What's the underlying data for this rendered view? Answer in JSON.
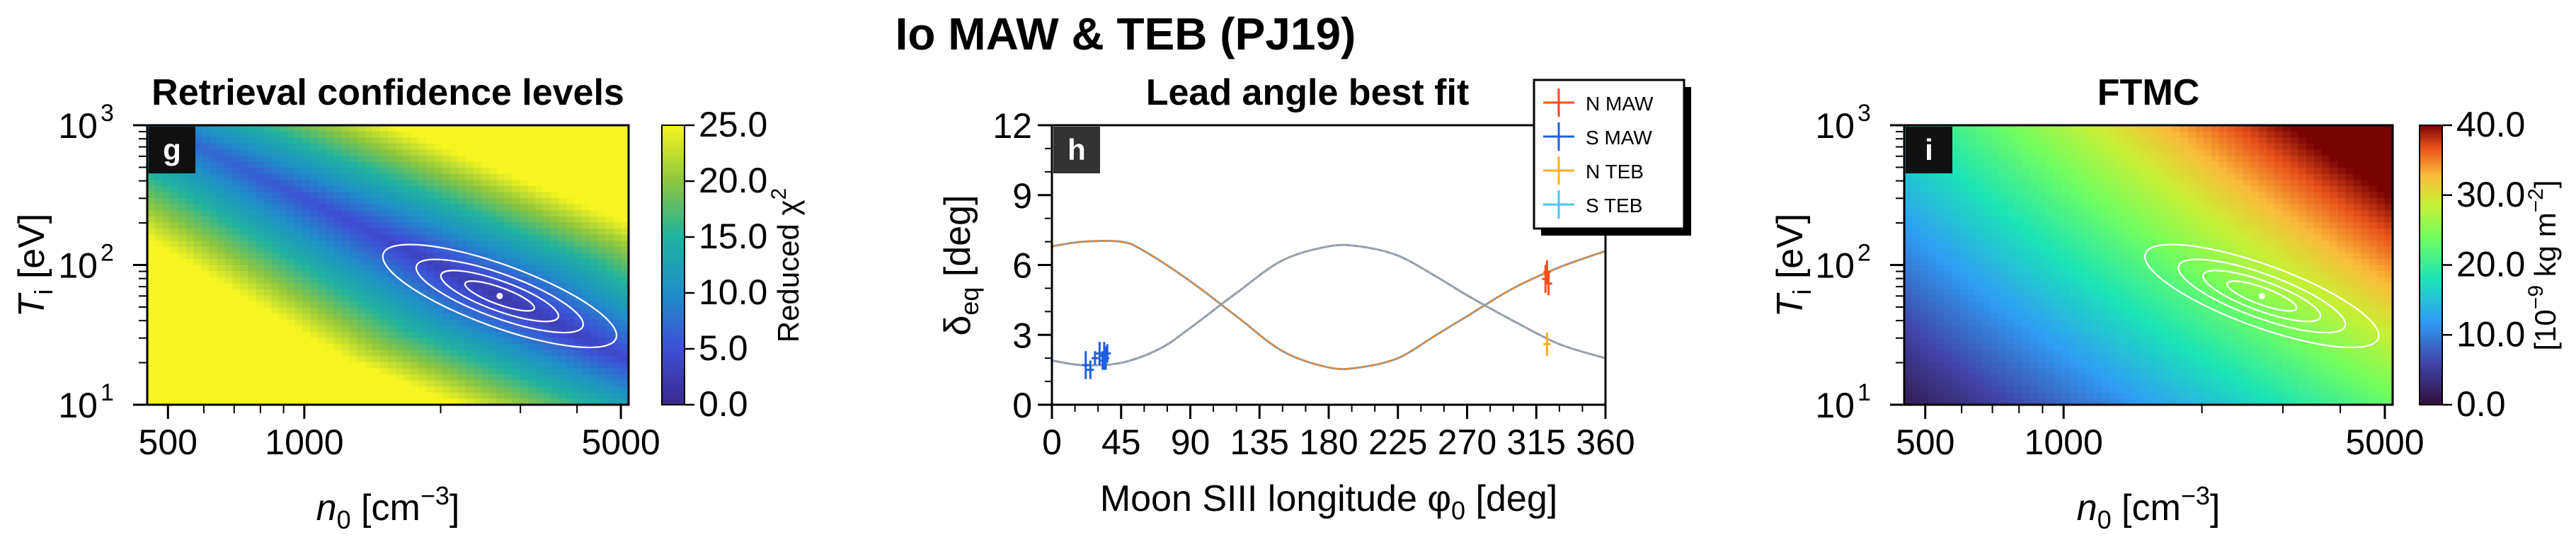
{
  "suptitle": "Io MAW & TEB (PJ19)",
  "colors": {
    "n_maw": "#ff4d1a",
    "s_maw": "#1f5fe0",
    "n_teb": "#ffb020",
    "s_teb": "#4fc3f7"
  },
  "chart_data": [
    {
      "type": "heatmap",
      "panel": "g",
      "title": "Retrieval confidence levels",
      "xlabel": "n",
      "xlabel_sub": "0",
      "xlabel_unit": " [cm",
      "xlabel_sup": "−3",
      "xlabel_end": "]",
      "ylabel": "T",
      "ylabel_sub": "i",
      "ylabel_unit": " [eV]",
      "xscale": "log",
      "yscale": "log",
      "xlim": [
        450,
        5200
      ],
      "ylim": [
        10,
        1000
      ],
      "xticks": [
        500,
        1000,
        5000
      ],
      "xtick_labels": [
        "500",
        "1000",
        "5000"
      ],
      "yticks": [
        10,
        100,
        1000
      ],
      "ytick_labels": [
        "10",
        "10",
        "10"
      ],
      "ytick_sups": [
        "1",
        "2",
        "3"
      ],
      "colorbar_label": "Reduced χ",
      "colorbar_label_sup": "2",
      "colorbar_ticks": [
        "0.0",
        "5.0",
        "10.0",
        "15.0",
        "20.0",
        "25.0"
      ],
      "clim": [
        0,
        25
      ],
      "colormap": "viridis-like (purple-blue-green-yellow)",
      "contours": "white nested ellipses",
      "best_fit": {
        "n0": 2700,
        "Ti": 60
      }
    },
    {
      "type": "line",
      "panel": "h",
      "title": "Lead angle best fit",
      "xlabel": "Moon SIII longitude φ",
      "xlabel_sub": "0",
      "xlabel_end": " [deg]",
      "ylabel": "δ",
      "ylabel_sub": "eq",
      "ylabel_end": " [deg]",
      "xlim": [
        0,
        360
      ],
      "ylim": [
        0,
        12
      ],
      "xticks": [
        0,
        45,
        90,
        135,
        180,
        225,
        270,
        315,
        360
      ],
      "xtick_labels": [
        "0",
        "45",
        "90",
        "135",
        "180",
        "225",
        "270",
        "315",
        "360"
      ],
      "yticks": [
        0,
        3,
        6,
        9,
        12
      ],
      "ytick_labels": [
        "0",
        "3",
        "6",
        "9",
        "12"
      ],
      "legend": [
        "N MAW",
        "S MAW",
        "N TEB",
        "S TEB"
      ],
      "legend_position": "top-right",
      "model_curves": [
        {
          "name": "north",
          "x": [
            0,
            20,
            45,
            60,
            90,
            120,
            150,
            180,
            200,
            225,
            250,
            270,
            300,
            330,
            360
          ],
          "y": [
            6.8,
            7.0,
            7.0,
            6.6,
            5.3,
            3.8,
            2.3,
            1.6,
            1.6,
            2.0,
            3.0,
            3.8,
            5.0,
            5.9,
            6.6
          ]
        },
        {
          "name": "south",
          "x": [
            0,
            20,
            45,
            70,
            90,
            120,
            150,
            180,
            200,
            225,
            250,
            270,
            300,
            330,
            360
          ],
          "y": [
            1.9,
            1.7,
            1.8,
            2.4,
            3.3,
            4.8,
            6.2,
            6.8,
            6.8,
            6.4,
            5.5,
            4.7,
            3.6,
            2.6,
            2.0
          ]
        }
      ],
      "observations": [
        {
          "name": "N MAW",
          "x": [
            321,
            322,
            323
          ],
          "y": [
            5.4,
            5.7,
            5.2
          ],
          "yerr": [
            0.6,
            0.5,
            0.5
          ]
        },
        {
          "name": "S MAW",
          "x": [
            22,
            25,
            28,
            31,
            33,
            34,
            35,
            36
          ],
          "y": [
            1.7,
            1.5,
            2.0,
            2.2,
            1.9,
            2.1,
            2.0,
            2.2
          ],
          "yerr": [
            0.6,
            0.4,
            0.3,
            0.5,
            0.4,
            0.6,
            0.5,
            0.4
          ]
        },
        {
          "name": "N TEB",
          "x": [
            322
          ],
          "y": [
            2.6
          ],
          "yerr": [
            0.5
          ]
        },
        {
          "name": "S TEB",
          "x": [],
          "y": [],
          "yerr": []
        }
      ]
    },
    {
      "type": "heatmap",
      "panel": "i",
      "title": "FTMC",
      "xlabel": "n",
      "xlabel_sub": "0",
      "xlabel_unit": " [cm",
      "xlabel_sup": "−3",
      "xlabel_end": "]",
      "ylabel": "T",
      "ylabel_sub": "i",
      "ylabel_unit": " [eV]",
      "xscale": "log",
      "yscale": "log",
      "xlim": [
        450,
        5200
      ],
      "ylim": [
        10,
        1000
      ],
      "xticks": [
        500,
        1000,
        5000
      ],
      "xtick_labels": [
        "500",
        "1000",
        "5000"
      ],
      "yticks": [
        10,
        100,
        1000
      ],
      "ytick_labels": [
        "10",
        "10",
        "10"
      ],
      "ytick_sups": [
        "1",
        "2",
        "3"
      ],
      "colorbar_label": "[10",
      "colorbar_label_sup1": "−9",
      "colorbar_label_mid": " kg m",
      "colorbar_label_sup2": "−2",
      "colorbar_label_end": "]",
      "colorbar_ticks": [
        "0.0",
        "10.0",
        "20.0",
        "30.0",
        "40.0"
      ],
      "clim": [
        0,
        40
      ],
      "colormap": "turbo-like (dark blue-cyan-green-yellow-red)",
      "contours": "white nested ellipses",
      "best_fit": {
        "n0": 2700,
        "Ti": 60
      }
    }
  ]
}
